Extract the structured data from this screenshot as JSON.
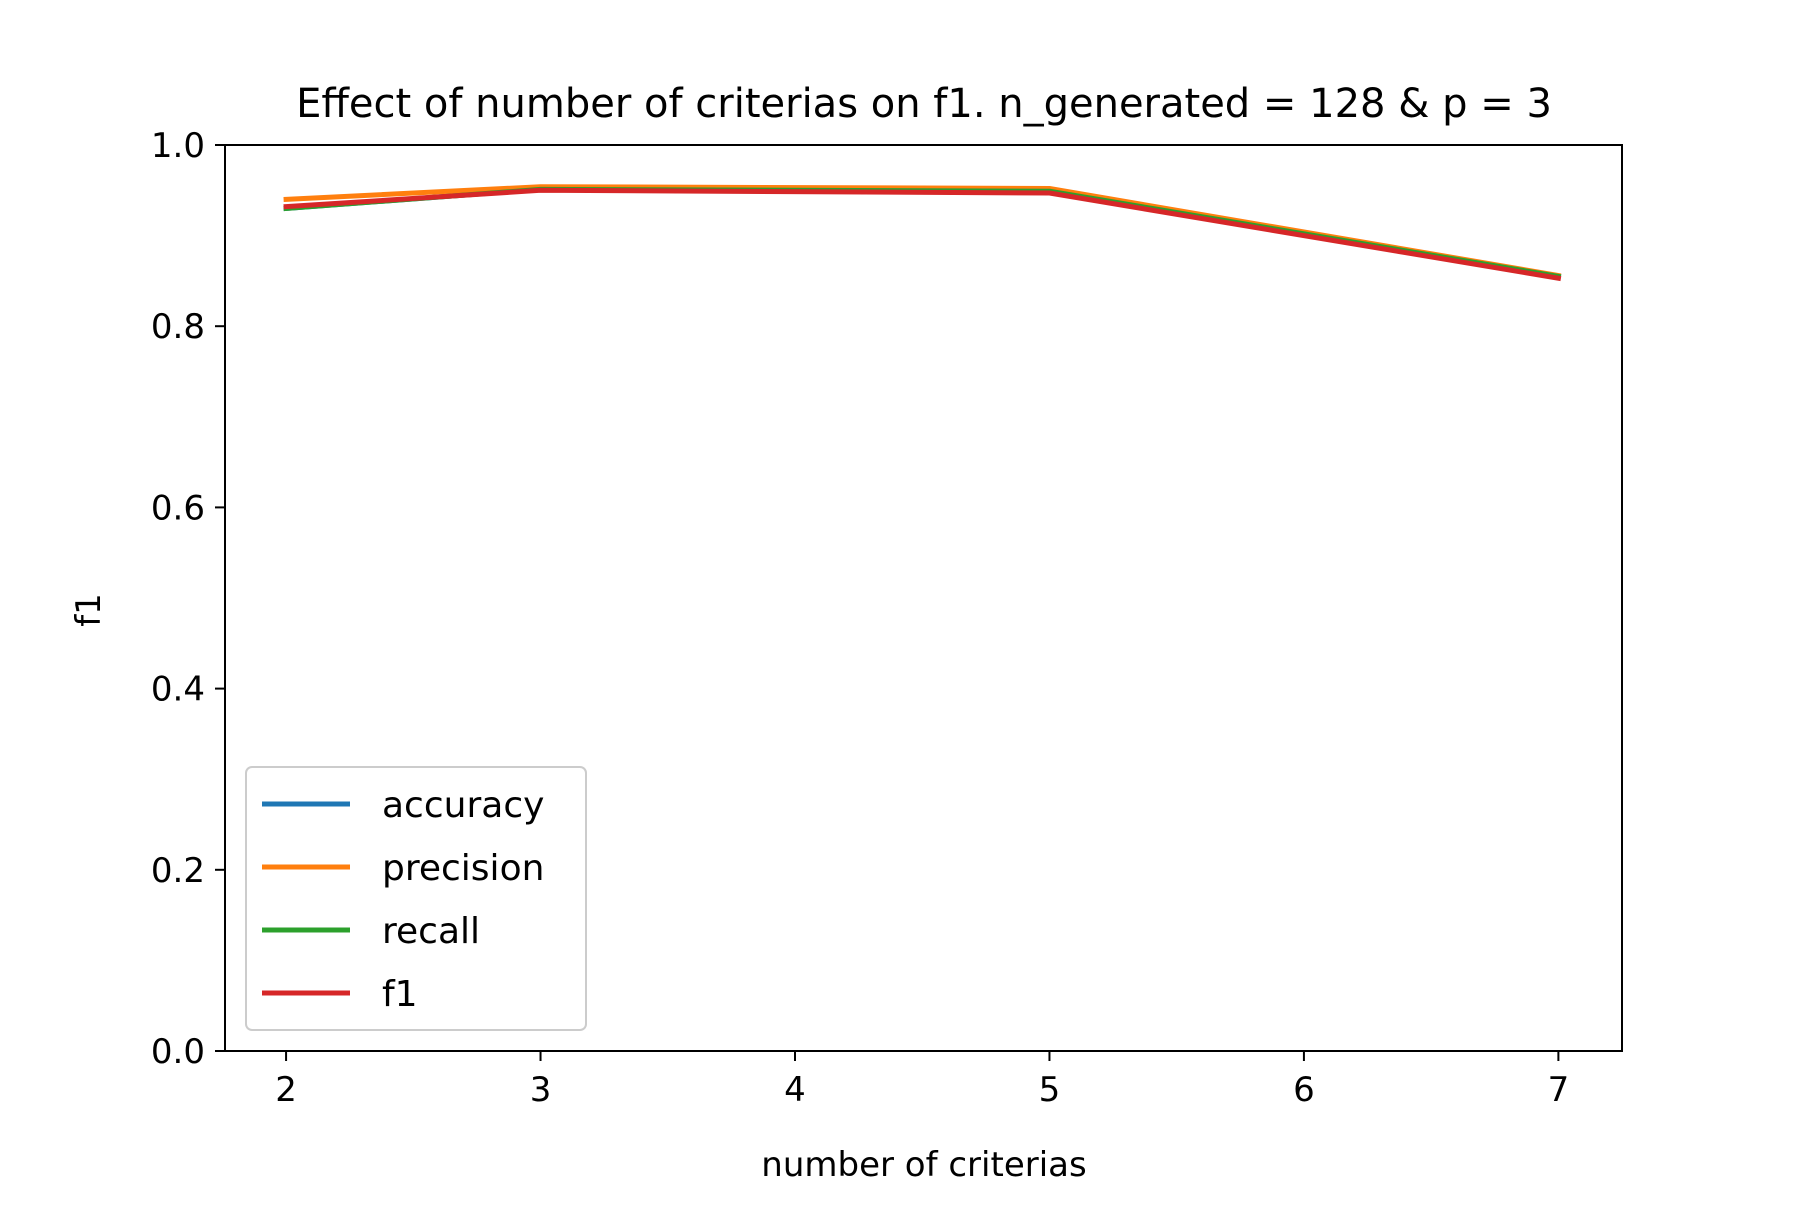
{
  "chart_data": {
    "type": "line",
    "title": "Effect of number of criterias on f1. n_generated = 128 & p = 3",
    "xlabel": "number of criterias",
    "ylabel": "f1",
    "x": [
      2,
      3,
      5,
      7
    ],
    "xlim": [
      1.76,
      7.25
    ],
    "ylim": [
      0.0,
      1.0
    ],
    "xticks": [
      2,
      3,
      4,
      5,
      6,
      7
    ],
    "yticks": [
      0.0,
      0.2,
      0.4,
      0.6,
      0.8,
      1.0
    ],
    "xtick_labels": [
      "2",
      "3",
      "4",
      "5",
      "6",
      "7"
    ],
    "ytick_labels": [
      "0.0",
      "0.2",
      "0.4",
      "0.6",
      "0.8",
      "1.0"
    ],
    "grid": false,
    "legend_position": "lower-left",
    "series": [
      {
        "name": "accuracy",
        "color": "#1f77b4",
        "values": [
          0.93,
          0.951,
          0.949,
          0.855
        ]
      },
      {
        "name": "precision",
        "color": "#ff7f0e",
        "values": [
          0.94,
          0.954,
          0.952,
          0.856
        ]
      },
      {
        "name": "recall",
        "color": "#2ca02c",
        "values": [
          0.93,
          0.951,
          0.949,
          0.855
        ]
      },
      {
        "name": "f1",
        "color": "#d62728",
        "values": [
          0.932,
          0.95,
          0.947,
          0.853
        ]
      }
    ]
  }
}
